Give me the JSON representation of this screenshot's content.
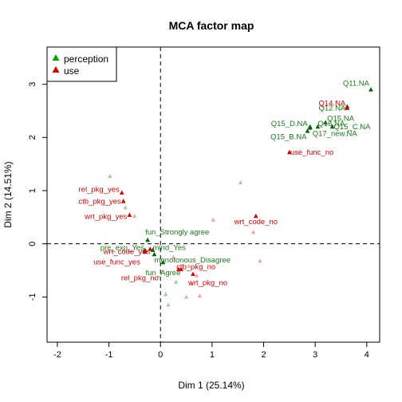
{
  "chart_data": {
    "type": "scatter",
    "title": "MCA factor map",
    "xlabel": "Dim 1 (25.14%)",
    "ylabel": "Dim 2 (14.51%)",
    "xlim": [
      -2.2,
      4.25
    ],
    "ylim": [
      -1.85,
      3.7
    ],
    "xticks": [
      -2,
      -1,
      0,
      1,
      2,
      3,
      4
    ],
    "yticks": [
      -1,
      0,
      1,
      2,
      3
    ],
    "reference_lines": {
      "x": 0,
      "y": 0,
      "style": "dashed"
    },
    "legend": {
      "position": "top-left",
      "entries": [
        {
          "label": "perception",
          "color": "#00aa00"
        },
        {
          "label": "use",
          "color": "#dd0000"
        }
      ]
    },
    "colors": {
      "perception": "#1a7a1a",
      "perception_marker": "#006400",
      "use": "#dd0000",
      "faded_perception": "#9fd09f",
      "faded_use": "#f0a8a8"
    },
    "series": [
      {
        "name": "perception",
        "points": [
          {
            "label": "Q11.NA",
            "x": 4.08,
            "y": 2.9
          },
          {
            "label": "Q12.NA",
            "x": 3.62,
            "y": 2.58
          },
          {
            "label": "Q15.NA",
            "x": 3.2,
            "y": 2.28
          },
          {
            "label": "Q15_C.NA",
            "x": 3.33,
            "y": 2.2
          },
          {
            "label": "Q15_D.NA",
            "x": 2.9,
            "y": 2.2
          },
          {
            "label": "Q16.NA",
            "x": 3.05,
            "y": 2.2
          },
          {
            "label": "Q17_new.NA",
            "x": 2.9,
            "y": 2.18
          },
          {
            "label": "Q15_B.NA",
            "x": 2.85,
            "y": 2.12
          },
          {
            "label": "fun_Strongly agree",
            "x": -0.25,
            "y": 0.07
          },
          {
            "label": "pre_exp_Yes",
            "x": -0.3,
            "y": -0.12
          },
          {
            "label": "mind_Yes",
            "x": -0.15,
            "y": -0.12
          },
          {
            "label": "monotonous_Disagree",
            "x": -0.12,
            "y": -0.2
          },
          {
            "label": "fun_Agree",
            "x": 0.05,
            "y": -0.35
          }
        ]
      },
      {
        "name": "use",
        "points": [
          {
            "label": "Q14.NA",
            "x": 3.62,
            "y": 2.55
          },
          {
            "label": "use_func_no",
            "x": 2.5,
            "y": 1.72
          },
          {
            "label": "rel_pkg_yes",
            "x": -0.75,
            "y": 0.96
          },
          {
            "label": "ctb_pkg_yes",
            "x": -0.72,
            "y": 0.8
          },
          {
            "label": "wrt_pkg_yes",
            "x": -0.6,
            "y": 0.54
          },
          {
            "label": "wrt_code_no",
            "x": 1.85,
            "y": 0.52
          },
          {
            "label": "wrt_code_yes",
            "x": -0.2,
            "y": -0.1
          },
          {
            "label": "use_func_yes",
            "x": -0.3,
            "y": -0.15
          },
          {
            "label": "ctb_pkg_no",
            "x": 0.4,
            "y": -0.48
          },
          {
            "label": "rel_pkg_no",
            "x": 0.35,
            "y": -0.48
          },
          {
            "label": "wrt_pkg_no",
            "x": 0.63,
            "y": -0.57
          }
        ]
      }
    ],
    "faded_points": [
      {
        "group": "perception",
        "x": -0.98,
        "y": 1.27
      },
      {
        "group": "perception",
        "x": -0.68,
        "y": 0.68
      },
      {
        "group": "perception",
        "x": 1.55,
        "y": 1.15
      },
      {
        "group": "perception",
        "x": 0.15,
        "y": -1.15
      },
      {
        "group": "perception",
        "x": 0.1,
        "y": -0.95
      },
      {
        "group": "perception",
        "x": 0.5,
        "y": -1.0
      },
      {
        "group": "perception",
        "x": 0.3,
        "y": -0.72
      },
      {
        "group": "use",
        "x": -0.5,
        "y": 0.52
      },
      {
        "group": "use",
        "x": 1.02,
        "y": 0.45
      },
      {
        "group": "use",
        "x": 1.8,
        "y": 0.22
      },
      {
        "group": "use",
        "x": 1.93,
        "y": -0.32
      },
      {
        "group": "use",
        "x": 0.76,
        "y": -0.98
      },
      {
        "group": "use",
        "x": 0.6,
        "y": -0.75
      },
      {
        "group": "use",
        "x": 0.7,
        "y": -0.6
      },
      {
        "group": "use",
        "x": 0.25,
        "y": -0.25
      },
      {
        "group": "use",
        "x": 0.55,
        "y": -0.42
      }
    ]
  }
}
